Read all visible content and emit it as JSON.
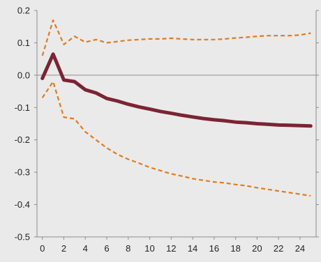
{
  "chart_data": {
    "type": "line",
    "title": "",
    "xlabel": "",
    "ylabel": "",
    "xlim": [
      -0.5,
      25.5
    ],
    "ylim": [
      -0.5,
      0.2
    ],
    "xticks": [
      0,
      2,
      4,
      6,
      8,
      10,
      12,
      14,
      16,
      18,
      20,
      22,
      24
    ],
    "yticks": [
      0.2,
      0.1,
      0.0,
      -0.1,
      -0.2,
      -0.3,
      -0.4,
      -0.5
    ],
    "ytick_labels": [
      "0.2",
      "0.1",
      "0.0",
      "-0.1",
      "-0.2",
      "-0.3",
      "-0.4",
      "-0.5"
    ],
    "grid": false,
    "legend": "none",
    "series": [
      {
        "style": "solid",
        "color": "#7b2434",
        "x": [
          0,
          1,
          2,
          3,
          4,
          5,
          6,
          7,
          8,
          9,
          10,
          11,
          12,
          13,
          14,
          15,
          16,
          17,
          18,
          19,
          20,
          21,
          22,
          23,
          24,
          25
        ],
        "values": [
          -0.01,
          0.065,
          -0.015,
          -0.02,
          -0.045,
          -0.055,
          -0.072,
          -0.08,
          -0.09,
          -0.098,
          -0.105,
          -0.112,
          -0.118,
          -0.124,
          -0.129,
          -0.134,
          -0.138,
          -0.141,
          -0.145,
          -0.147,
          -0.15,
          -0.152,
          -0.154,
          -0.155,
          -0.156,
          -0.157
        ]
      },
      {
        "style": "dashed",
        "color": "#e07b1f",
        "x": [
          0,
          1,
          2,
          3,
          4,
          5,
          6,
          7,
          8,
          9,
          10,
          11,
          12,
          13,
          14,
          15,
          16,
          17,
          18,
          19,
          20,
          21,
          22,
          23,
          24,
          25
        ],
        "values": [
          0.06,
          0.17,
          0.095,
          0.12,
          0.102,
          0.11,
          0.1,
          0.104,
          0.108,
          0.11,
          0.112,
          0.112,
          0.114,
          0.112,
          0.11,
          0.11,
          0.11,
          0.112,
          0.115,
          0.117,
          0.12,
          0.122,
          0.122,
          0.122,
          0.124,
          0.13
        ]
      },
      {
        "style": "dashed",
        "color": "#e07b1f",
        "x": [
          0,
          1,
          2,
          3,
          4,
          5,
          6,
          7,
          8,
          9,
          10,
          11,
          12,
          13,
          14,
          15,
          16,
          17,
          18,
          19,
          20,
          21,
          22,
          23,
          24,
          25
        ],
        "values": [
          -0.07,
          -0.02,
          -0.13,
          -0.135,
          -0.175,
          -0.2,
          -0.225,
          -0.245,
          -0.26,
          -0.272,
          -0.285,
          -0.295,
          -0.305,
          -0.312,
          -0.32,
          -0.325,
          -0.33,
          -0.333,
          -0.338,
          -0.342,
          -0.348,
          -0.353,
          -0.358,
          -0.363,
          -0.368,
          -0.373
        ]
      }
    ]
  }
}
